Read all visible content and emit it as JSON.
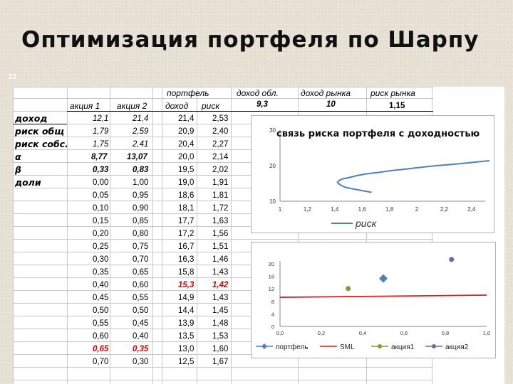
{
  "slide": {
    "title": "Оптимизация портфеля по Шарпу",
    "number": "23"
  },
  "headers": {
    "portfolio": "портфель",
    "stock1": "акция 1",
    "stock2": "акция 2",
    "income": "доход",
    "risk": "риск",
    "bond_income": "доход обл.",
    "market_income": "доход рынка",
    "market_risk": "риск рынка"
  },
  "market": {
    "bond_income": "9,3",
    "market_income": "10",
    "market_risk": "1,15"
  },
  "row_labels": [
    "доход",
    "риск общ",
    "риск собс.",
    "α",
    "β",
    "доли"
  ],
  "stats": [
    [
      "12,1",
      "21,4"
    ],
    [
      "1,79",
      "2,59"
    ],
    [
      "1,75",
      "2,41"
    ],
    [
      "8,77",
      "13,07"
    ],
    [
      "0,33",
      "0,83"
    ]
  ],
  "rows": [
    {
      "w1": "",
      "w2": "",
      "inc": "21,4",
      "risk": "2,53"
    },
    {
      "w1": "",
      "w2": "",
      "inc": "20,9",
      "risk": "2,40"
    },
    {
      "w1": "",
      "w2": "",
      "inc": "20,4",
      "risk": "2,27"
    },
    {
      "w1": "",
      "w2": "",
      "inc": "20,0",
      "risk": "2,14"
    },
    {
      "w1": "",
      "w2": "",
      "inc": "19,5",
      "risk": "2,02"
    },
    {
      "w1": "0,00",
      "w2": "1,00",
      "inc": "19,0",
      "risk": "1,91"
    },
    {
      "w1": "0,05",
      "w2": "0,95",
      "inc": "18,6",
      "risk": "1,81"
    },
    {
      "w1": "0,10",
      "w2": "0,90",
      "inc": "18,1",
      "risk": "1,72"
    },
    {
      "w1": "0,15",
      "w2": "0,85",
      "inc": "17,7",
      "risk": "1,63"
    },
    {
      "w1": "0,20",
      "w2": "0,80",
      "inc": "17,2",
      "risk": "1,56"
    },
    {
      "w1": "0,25",
      "w2": "0,75",
      "inc": "16,7",
      "risk": "1,51"
    },
    {
      "w1": "0,30",
      "w2": "0,70",
      "inc": "16,3",
      "risk": "1,46"
    },
    {
      "w1": "0,35",
      "w2": "0,65",
      "inc": "15,8",
      "risk": "1,43"
    },
    {
      "w1": "0,40",
      "w2": "0,60",
      "inc": "15,3",
      "risk": "1,42"
    },
    {
      "w1": "0,45",
      "w2": "0,55",
      "inc": "14,9",
      "risk": "1,43"
    },
    {
      "w1": "0,50",
      "w2": "0,50",
      "inc": "14,4",
      "risk": "1,45"
    },
    {
      "w1": "0,55",
      "w2": "0,45",
      "inc": "13,9",
      "risk": "1,48"
    },
    {
      "w1": "0,60",
      "w2": "0,40",
      "inc": "13,5",
      "risk": "1,53"
    },
    {
      "w1": "0,65",
      "w2": "0,35",
      "inc": "13,0",
      "risk": "1,60"
    },
    {
      "w1": "0,70",
      "w2": "0,30",
      "inc": "12,5",
      "risk": "1,67"
    }
  ],
  "highlight": {
    "portfolio_row": 13,
    "weights_row": 18
  },
  "colors": {
    "curve": "#4f81bd",
    "sml": "#e41a1c",
    "stock1": "#77a03b",
    "stock2": "#7f5f9f",
    "highlight": "#d40000"
  },
  "chart_data": [
    {
      "type": "line",
      "title": "связь риска портфеля с доходностью",
      "xlabel": "",
      "ylabel": "",
      "xlim": [
        1,
        2.5
      ],
      "ylim": [
        10,
        30
      ],
      "x_ticks": [
        "1",
        "1,2",
        "1,4",
        "1,6",
        "1,8",
        "2",
        "2,2",
        "2,4"
      ],
      "y_ticks": [
        "10",
        "20",
        "30"
      ],
      "legend": {
        "position": "bottom",
        "entries": [
          "риск"
        ]
      },
      "series": [
        {
          "name": "риск",
          "x": [
            2.53,
            2.4,
            2.27,
            2.14,
            2.02,
            1.91,
            1.81,
            1.72,
            1.63,
            1.56,
            1.51,
            1.46,
            1.43,
            1.42,
            1.43,
            1.45,
            1.48,
            1.53,
            1.6,
            1.67
          ],
          "y": [
            21.4,
            20.9,
            20.4,
            20.0,
            19.5,
            19.0,
            18.6,
            18.1,
            17.7,
            17.2,
            16.7,
            16.3,
            15.8,
            15.3,
            14.9,
            14.4,
            13.9,
            13.5,
            13.0,
            12.5
          ]
        }
      ]
    },
    {
      "type": "scatter",
      "title": "",
      "xlim": [
        0,
        1
      ],
      "ylim": [
        0,
        20
      ],
      "x_ticks": [
        "0,0",
        "0,2",
        "0,4",
        "0,6",
        "0,8",
        "1,0"
      ],
      "y_ticks": [
        "0",
        "4",
        "8",
        "12",
        "16",
        "20"
      ],
      "legend": {
        "position": "bottom",
        "entries": [
          "портфель",
          "SML",
          "акция1",
          "акция2"
        ]
      },
      "series": [
        {
          "name": "портфель",
          "marker": "diamond",
          "x": [
            0.5
          ],
          "y": [
            15.3
          ]
        },
        {
          "name": "SML",
          "marker": "line",
          "x": [
            0,
            1
          ],
          "y": [
            9.3,
            10.0
          ]
        },
        {
          "name": "акция1",
          "marker": "circle",
          "x": [
            0.33
          ],
          "y": [
            12.1
          ]
        },
        {
          "name": "акция2",
          "marker": "circle",
          "x": [
            0.83
          ],
          "y": [
            21.4
          ]
        }
      ]
    }
  ]
}
